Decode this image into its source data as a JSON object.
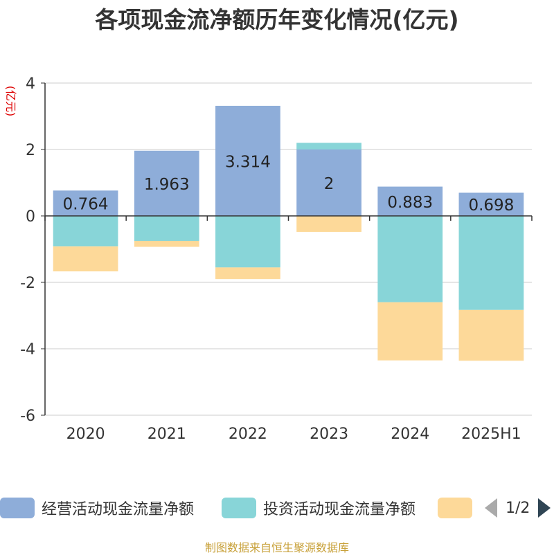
{
  "title": "各项现金流净额历年变化情况(亿元)",
  "source_note": "制图数据来自恒生聚源数据库",
  "legend": {
    "items": [
      {
        "label": "经营活动现金流量净额",
        "color": "#8eadd9"
      },
      {
        "label": "投资活动现金流量净额",
        "color": "#88d5d8"
      },
      {
        "label": "",
        "color": "#fdd999"
      }
    ],
    "page_text": "1/2"
  },
  "chart_data": {
    "type": "bar",
    "stacked": true,
    "categories": [
      "2020",
      "2021",
      "2022",
      "2023",
      "2024",
      "2025H1"
    ],
    "ylabel": "(亿元)",
    "ylim": [
      -6,
      4
    ],
    "yticks": [
      -6,
      -4,
      -2,
      0,
      2,
      4
    ],
    "grid": true,
    "legend_position": "bottom",
    "series": [
      {
        "name": "经营活动现金流量净额",
        "color": "#8eadd9",
        "values": [
          0.764,
          1.963,
          3.314,
          2,
          0.883,
          0.698
        ],
        "show_labels": true
      },
      {
        "name": "投资活动现金流量净额",
        "color": "#88d5d8",
        "values": [
          -0.92,
          -0.75,
          -1.55,
          0.2,
          -2.6,
          -2.83
        ],
        "show_labels": false
      },
      {
        "name": "",
        "color": "#fdd999",
        "values": [
          -0.75,
          -0.18,
          -0.35,
          -0.48,
          -1.75,
          -1.53
        ],
        "show_labels": false
      }
    ]
  }
}
